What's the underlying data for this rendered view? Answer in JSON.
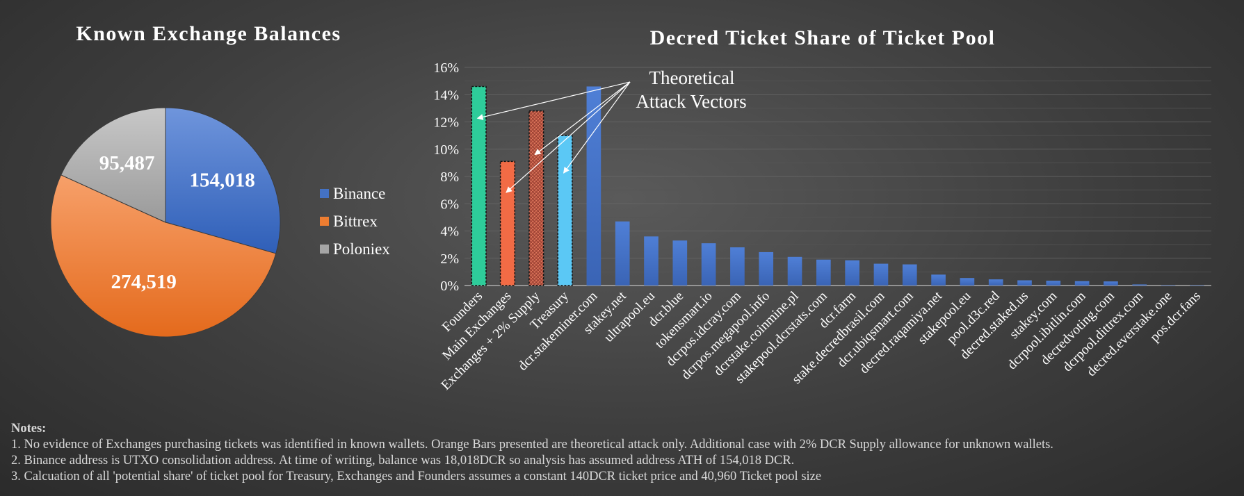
{
  "colors": {
    "binance": "#4472c4",
    "bittrex": "#ed7d31",
    "poloniex": "#a5a5a5",
    "founders": "#2ecc9a",
    "main_exchanges": "#f26b45",
    "exchanges_supply": "#c75b47",
    "treasury": "#5bc8f5",
    "pool_bar": "#4472c4"
  },
  "chart_data": [
    {
      "type": "pie",
      "title": "Known Exchange Balances",
      "labels": [
        "Binance",
        "Bittrex",
        "Poloniex"
      ],
      "values": [
        154018,
        274519,
        95487
      ],
      "data_labels": [
        "154,018",
        "274,519",
        "95,487"
      ],
      "legend": "right"
    },
    {
      "type": "bar",
      "title": "Decred Ticket Share of Ticket Pool",
      "categories": [
        "Founders",
        "Main Exchanges",
        "Exchanges + 2% Supply",
        "Treasury",
        "dcr.stakeminer.com",
        "stakey.net",
        "ultrapool.eu",
        "dcr.blue",
        "tokensmart.io",
        "dcrpos.idcray.com",
        "dcrpos.megapool.info",
        "dcrstake.coinmine.pl",
        "stakepool.dcrstats.com",
        "dcr.farm",
        "stake.decredbrasil.com",
        "dcr.ubiqsmart.com",
        "decred.raqamiya.net",
        "stakepool.eu",
        "pool.d3c.red",
        "decred.staked.us",
        "stakey.com",
        "dcrpool.ibitlin.com",
        "decredvoting.com",
        "dcrpool.dittrex.com",
        "decred.everstake.one",
        "pos.dcr.fans"
      ],
      "values": [
        14.6,
        9.1,
        12.8,
        11.0,
        14.6,
        4.7,
        3.6,
        3.3,
        3.1,
        2.8,
        2.45,
        2.1,
        1.9,
        1.85,
        1.6,
        1.55,
        0.8,
        0.55,
        0.45,
        0.38,
        0.35,
        0.32,
        0.3,
        0.08,
        0.03,
        0.02
      ],
      "y_ticks": [
        "0%",
        "2%",
        "4%",
        "6%",
        "8%",
        "10%",
        "12%",
        "14%",
        "16%"
      ],
      "ylim": [
        0,
        16
      ],
      "grid": true,
      "annotation": {
        "lines": [
          "Theoretical",
          "Attack Vectors"
        ],
        "target_categories": [
          "Founders",
          "Main Exchanges",
          "Exchanges + 2% Supply",
          "Treasury"
        ]
      }
    }
  ],
  "notes": {
    "title": "Notes:",
    "lines": [
      "1. No evidence of Exchanges purchasing tickets was identified in known wallets. Orange Bars presented are theoretical attack only. Additional case with 2% DCR Supply allowance for unknown wallets.",
      "2. Binance address is UTXO consolidation address. At time of writing, balance was 18,018DCR so analysis has assumed address ATH of 154,018 DCR.",
      "3. Calcuation of all 'potential share' of ticket pool for Treasury, Exchanges and Founders assumes a constant 140DCR ticket price and 40,960 Ticket pool size"
    ]
  }
}
